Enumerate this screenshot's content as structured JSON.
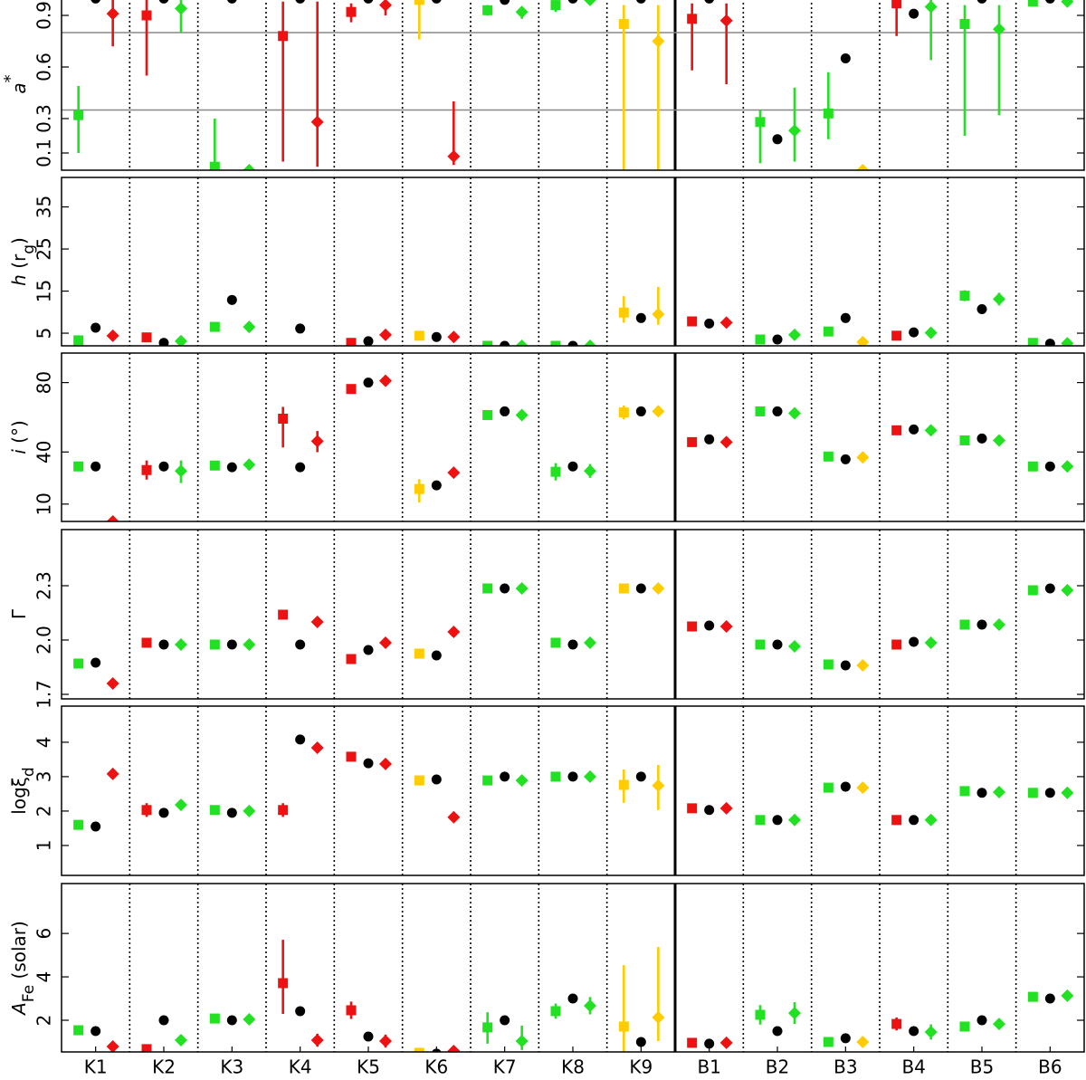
{
  "chart_data": [
    {
      "type": "category-errorbar",
      "ylabel": [
        {
          "text": "a",
          "style": "italic"
        },
        {
          "text": "*",
          "style": "sup"
        }
      ],
      "ylim": [
        0,
        1
      ],
      "yticks": [
        0.1,
        0.3,
        0.6,
        0.9
      ],
      "hlines": [
        0.8,
        0.35
      ],
      "divider_after": 8,
      "series": [
        {
          "marker": "square",
          "colors": [
            "#22e022",
            "#ee1111",
            "#22e022",
            "#ee1111",
            "#ee1111",
            "#ffcc00",
            "#22e022",
            "#22e022",
            "#ffcc00",
            "#ee1111",
            "#22e022",
            "#22e022",
            "#ee1111",
            "#22e022",
            "#22e022"
          ],
          "values": [
            0.32,
            0.9,
            0.02,
            0.78,
            0.92,
            0.99,
            0.93,
            0.96,
            0.85,
            0.88,
            0.28,
            0.33,
            0.97,
            0.85,
            0.98
          ],
          "err_minus": [
            0.22,
            0.35,
            0.02,
            0.73,
            0.06,
            0.23,
            0.03,
            0.04,
            0.85,
            0.3,
            0.24,
            0.15,
            0.19,
            0.65,
            null
          ],
          "err_plus": [
            0.17,
            0.09,
            0.28,
            0.2,
            0.05,
            0,
            0.03,
            0.03,
            0.11,
            0.09,
            0.07,
            0.24,
            0.02,
            0.11,
            null
          ]
        },
        {
          "marker": "circle",
          "color": "#000000",
          "values": [
            0.998,
            0.998,
            0.998,
            0.998,
            0.998,
            0.998,
            0.99,
            0.998,
            0.998,
            0.998,
            0.18,
            0.65,
            0.91,
            0.998,
            0.998
          ]
        },
        {
          "marker": "diamond",
          "colors": [
            "#ee1111",
            "#22e022",
            "#22e022",
            "#ee1111",
            "#ee1111",
            "#ee1111",
            "#22e022",
            "#22e022",
            "#ffcc00",
            "#ee1111",
            "#22e022",
            "#ffcc00",
            "#22e022",
            "#22e022",
            "#22e022"
          ],
          "values": [
            0.91,
            0.94,
            0,
            0.28,
            0.96,
            0.08,
            0.92,
            0.99,
            0.75,
            0.87,
            0.23,
            0,
            0.95,
            0.82,
            0.98
          ],
          "err_minus": [
            0.19,
            0.14,
            null,
            0.26,
            0.06,
            0.05,
            0.04,
            null,
            0.75,
            0.37,
            0.18,
            0,
            0.31,
            0.5,
            null
          ],
          "err_plus": [
            0.08,
            0.05,
            null,
            0.7,
            0.03,
            0.32,
            0.03,
            null,
            0.21,
            0.1,
            0.25,
            0.02,
            0.04,
            0.14,
            null
          ]
        }
      ]
    },
    {
      "type": "category-errorbar",
      "ylabel": [
        {
          "text": "h",
          "style": "italic"
        },
        {
          "text": " (r"
        },
        {
          "text": "g",
          "style": "sub"
        },
        {
          "text": ")"
        }
      ],
      "ylim": [
        2,
        42
      ],
      "yticks": [
        5,
        15,
        25,
        35
      ],
      "divider_after": 8,
      "series": [
        {
          "marker": "square",
          "colors": [
            "#22e022",
            "#ee1111",
            "#22e022",
            "#ee1111",
            "#ee1111",
            "#ffcc00",
            "#22e022",
            "#22e022",
            "#ffcc00",
            "#ee1111",
            "#22e022",
            "#22e022",
            "#ee1111",
            "#22e022",
            "#22e022"
          ],
          "values": [
            3.3,
            4.0,
            6.5,
            null,
            2.7,
            4.4,
            2.0,
            2.0,
            9.9,
            7.8,
            3.5,
            5.4,
            4.4,
            13.9,
            2.7
          ],
          "err_minus": [
            null,
            null,
            null,
            null,
            null,
            null,
            null,
            null,
            2.4,
            null,
            null,
            null,
            null,
            1.3,
            null
          ],
          "err_plus": [
            null,
            null,
            null,
            null,
            null,
            null,
            null,
            null,
            3.9,
            null,
            null,
            null,
            null,
            1.3,
            null
          ]
        },
        {
          "marker": "circle",
          "color": "#000000",
          "values": [
            6.3,
            2.7,
            12.9,
            6.1,
            3.1,
            4.1,
            2.0,
            2.0,
            8.6,
            7.3,
            3.5,
            8.6,
            5.2,
            10.7,
            2.5
          ]
        },
        {
          "marker": "diamond",
          "colors": [
            "#ee1111",
            "#22e022",
            "#22e022",
            "#ee1111",
            "#ee1111",
            "#ee1111",
            "#22e022",
            "#22e022",
            "#ffcc00",
            "#ee1111",
            "#22e022",
            "#ffcc00",
            "#22e022",
            "#22e022",
            "#22e022"
          ],
          "values": [
            4.4,
            3.1,
            6.5,
            null,
            4.6,
            4.1,
            2.0,
            2.0,
            9.5,
            7.5,
            4.6,
            2.9,
            5.1,
            13.1,
            2.6
          ],
          "err_minus": [
            null,
            null,
            null,
            null,
            null,
            null,
            null,
            null,
            2.5,
            null,
            null,
            null,
            null,
            1.5,
            null
          ],
          "err_plus": [
            null,
            null,
            null,
            null,
            null,
            null,
            null,
            null,
            6.5,
            null,
            null,
            null,
            null,
            1.5,
            null
          ]
        }
      ]
    },
    {
      "type": "category-errorbar",
      "ylabel": [
        {
          "text": "i",
          "style": "italic"
        },
        {
          "text": " (°)"
        }
      ],
      "ylim": [
        0,
        97
      ],
      "yticks": [
        10,
        40,
        80
      ],
      "divider_after": 8,
      "series": [
        {
          "marker": "square",
          "colors": [
            "#22e022",
            "#ee1111",
            "#22e022",
            "#ee1111",
            "#ee1111",
            "#ffcc00",
            "#22e022",
            "#22e022",
            "#ffcc00",
            "#ee1111",
            "#22e022",
            "#22e022",
            "#ee1111",
            "#22e022",
            "#22e022"
          ],
          "values": [
            31.7,
            29.6,
            32.2,
            59.2,
            76.3,
            18.7,
            61.3,
            28.6,
            62.8,
            45.7,
            63.4,
            37.4,
            52.5,
            46.7,
            31.7
          ],
          "err_minus": [
            null,
            5.5,
            null,
            16.6,
            null,
            7.8,
            null,
            5,
            4,
            null,
            null,
            null,
            null,
            null,
            null
          ],
          "err_plus": [
            null,
            5.5,
            null,
            6.8,
            null,
            5.7,
            null,
            5,
            4,
            null,
            null,
            null,
            null,
            null,
            null
          ]
        },
        {
          "marker": "circle",
          "color": "#000000",
          "values": [
            31.7,
            31.7,
            31.2,
            31.2,
            80,
            20.8,
            63.4,
            31.7,
            63.4,
            47.3,
            63.4,
            35.8,
            53,
            47.8,
            31.7
          ]
        },
        {
          "marker": "diamond",
          "colors": [
            "#ee1111",
            "#22e022",
            "#22e022",
            "#ee1111",
            "#ee1111",
            "#ee1111",
            "#22e022",
            "#22e022",
            "#ffcc00",
            "#ee1111",
            "#22e022",
            "#ffcc00",
            "#22e022",
            "#22e022",
            "#22e022"
          ],
          "values": [
            0,
            29.1,
            32.7,
            46.2,
            81,
            28.1,
            61.3,
            29.1,
            63.4,
            45.7,
            62.3,
            36.9,
            52.5,
            46.7,
            31.7
          ],
          "err_minus": [
            null,
            7,
            null,
            6.3,
            null,
            null,
            null,
            4,
            null,
            null,
            null,
            null,
            null,
            null,
            null
          ],
          "err_plus": [
            null,
            6,
            null,
            5.9,
            null,
            null,
            null,
            4,
            null,
            null,
            null,
            null,
            null,
            null,
            null
          ]
        }
      ]
    },
    {
      "type": "category-errorbar",
      "ylabel": [
        {
          "text": "Γ"
        }
      ],
      "ylim": [
        1.675,
        2.61
      ],
      "yticks": [
        1.7,
        {
          "value": 2,
          "label": "2.0"
        },
        2.3
      ],
      "divider_after": 8,
      "series": [
        {
          "marker": "square",
          "colors": [
            "#22e022",
            "#ee1111",
            "#22e022",
            "#ee1111",
            "#ee1111",
            "#ffcc00",
            "#22e022",
            "#22e022",
            "#ffcc00",
            "#ee1111",
            "#22e022",
            "#22e022",
            "#ee1111",
            "#22e022",
            "#22e022"
          ],
          "values": [
            1.87,
            1.985,
            1.975,
            2.14,
            1.895,
            1.925,
            2.285,
            1.985,
            2.285,
            2.075,
            1.975,
            1.865,
            1.975,
            2.085,
            2.275
          ]
        },
        {
          "marker": "circle",
          "color": "#000000",
          "values": [
            1.875,
            1.975,
            1.975,
            1.975,
            1.945,
            1.915,
            2.285,
            1.975,
            2.285,
            2.08,
            1.975,
            1.86,
            1.99,
            2.085,
            2.285
          ]
        },
        {
          "marker": "diamond",
          "colors": [
            "#ee1111",
            "#22e022",
            "#22e022",
            "#ee1111",
            "#ee1111",
            "#ee1111",
            "#22e022",
            "#22e022",
            "#ffcc00",
            "#ee1111",
            "#22e022",
            "#ffcc00",
            "#22e022",
            "#22e022",
            "#22e022"
          ],
          "values": [
            1.76,
            1.975,
            1.975,
            2.1,
            1.985,
            2.045,
            2.285,
            1.985,
            2.285,
            2.075,
            1.965,
            1.86,
            1.985,
            2.085,
            2.275
          ]
        }
      ]
    },
    {
      "type": "category-errorbar",
      "ylabel": [
        {
          "text": "logξ"
        },
        {
          "text": "d",
          "style": "sub"
        }
      ],
      "ylim": [
        0.13,
        5.05
      ],
      "yticks": [
        1,
        2,
        3,
        4
      ],
      "divider_after": 8,
      "series": [
        {
          "marker": "square",
          "colors": [
            "#22e022",
            "#ee1111",
            "#22e022",
            "#ee1111",
            "#ee1111",
            "#ffcc00",
            "#22e022",
            "#22e022",
            "#ffcc00",
            "#ee1111",
            "#22e022",
            "#22e022",
            "#ee1111",
            "#22e022",
            "#22e022"
          ],
          "values": [
            1.6,
            2.03,
            2.03,
            2.03,
            3.58,
            2.89,
            2.89,
            3.0,
            2.76,
            2.08,
            1.74,
            2.68,
            1.74,
            2.58,
            2.53
          ],
          "err_minus": [
            null,
            0.2,
            null,
            0.2,
            null,
            null,
            null,
            null,
            0.52,
            null,
            null,
            null,
            null,
            null,
            null
          ],
          "err_plus": [
            null,
            0.2,
            null,
            0.2,
            null,
            null,
            null,
            null,
            0.45,
            null,
            null,
            null,
            null,
            null,
            null
          ]
        },
        {
          "marker": "circle",
          "color": "#000000",
          "values": [
            1.55,
            1.95,
            1.95,
            4.08,
            3.39,
            2.92,
            3.0,
            3.0,
            3.0,
            2.03,
            1.74,
            2.71,
            1.74,
            2.53,
            2.53
          ]
        },
        {
          "marker": "diamond",
          "colors": [
            "#ee1111",
            "#22e022",
            "#22e022",
            "#ee1111",
            "#ee1111",
            "#ee1111",
            "#22e022",
            "#22e022",
            "#ffcc00",
            "#ee1111",
            "#22e022",
            "#ffcc00",
            "#22e022",
            "#22e022",
            "#22e022"
          ],
          "values": [
            3.08,
            2.18,
            2.0,
            3.84,
            3.37,
            1.82,
            2.89,
            3.0,
            2.74,
            2.08,
            1.74,
            2.68,
            1.74,
            2.55,
            2.53
          ],
          "err_minus": [
            null,
            0.15,
            null,
            null,
            null,
            null,
            null,
            null,
            0.71,
            null,
            null,
            null,
            null,
            null,
            null
          ],
          "err_plus": [
            null,
            0.15,
            null,
            null,
            null,
            null,
            null,
            null,
            0.6,
            null,
            null,
            null,
            null,
            null,
            null
          ]
        }
      ]
    },
    {
      "type": "category-errorbar",
      "ylabel": [
        {
          "text": "A",
          "style": "italic"
        },
        {
          "text": "Fe",
          "style": "sub"
        },
        {
          "text": " (solar)"
        }
      ],
      "ylim": [
        0.54,
        8.3
      ],
      "yticks": [
        2,
        4,
        6
      ],
      "divider_after": 8,
      "categories": [
        "K1",
        "K2",
        "K3",
        "K4",
        "K5",
        "K6",
        "K7",
        "K8",
        "K9",
        "B1",
        "B2",
        "B3",
        "B4",
        "B5",
        "B6"
      ],
      "series": [
        {
          "marker": "square",
          "colors": [
            "#22e022",
            "#ee1111",
            "#22e022",
            "#ee1111",
            "#ee1111",
            "#ffcc00",
            "#22e022",
            "#22e022",
            "#ffcc00",
            "#ee1111",
            "#22e022",
            "#22e022",
            "#ee1111",
            "#22e022",
            "#22e022"
          ],
          "values": [
            1.54,
            0.67,
            2.08,
            3.71,
            2.46,
            0.5,
            1.67,
            2.42,
            1.71,
            0.96,
            2.25,
            1.0,
            1.83,
            1.71,
            3.08
          ],
          "err_minus": [
            0.2,
            null,
            0.2,
            1.42,
            0.4,
            null,
            0.75,
            0.35,
            1.21,
            0.2,
            0.45,
            0.15,
            0.3,
            0.15,
            0.15
          ],
          "err_plus": [
            0.2,
            null,
            0.2,
            2.0,
            0.4,
            null,
            0.7,
            0.35,
            2.83,
            0.2,
            0.45,
            0.15,
            0.3,
            0.15,
            0.15
          ]
        },
        {
          "marker": "circle",
          "color": "#000000",
          "values": [
            1.5,
            2.0,
            2.0,
            2.42,
            1.25,
            0.46,
            2.0,
            3.0,
            1.0,
            0.92,
            1.5,
            1.17,
            1.5,
            2.0,
            3.0
          ]
        },
        {
          "marker": "diamond",
          "colors": [
            "#ee1111",
            "#22e022",
            "#22e022",
            "#ee1111",
            "#ee1111",
            "#ee1111",
            "#22e022",
            "#22e022",
            "#ffcc00",
            "#ee1111",
            "#22e022",
            "#ffcc00",
            "#22e022",
            "#22e022",
            "#22e022"
          ],
          "values": [
            0.79,
            1.08,
            2.04,
            1.08,
            1.04,
            0.58,
            1.04,
            2.67,
            2.13,
            0.96,
            2.33,
            1.0,
            1.46,
            1.83,
            3.13
          ],
          "err_minus": [
            null,
            0.25,
            0.2,
            0.3,
            0.3,
            null,
            0.41,
            0.4,
            1.09,
            0.15,
            0.5,
            null,
            0.35,
            0.2,
            null
          ],
          "err_plus": [
            null,
            0.25,
            0.2,
            0.3,
            0.3,
            null,
            0.71,
            0.4,
            3.25,
            0.15,
            0.5,
            null,
            0.35,
            0.2,
            null
          ]
        }
      ]
    }
  ]
}
